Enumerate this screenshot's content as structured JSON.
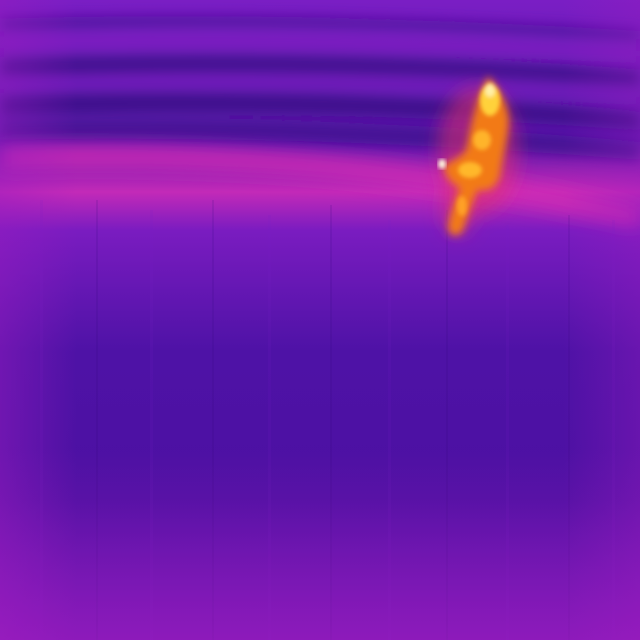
{
  "image": {
    "kind": "thermal-camera-frame",
    "palette": {
      "cold_deep": "#3a0a8c",
      "cold": "#4f12a8",
      "mid_violet": "#6a1ab8",
      "magenta": "#b01ec0",
      "hot_pink": "#d62aa8",
      "warm_orange": "#f07a10",
      "hot_yellow": "#ffd23a",
      "white_hot": "#fff8e0"
    },
    "subject": "warm-body-heat-signature",
    "background": "horizontal-cool-stripes-over-violet-field"
  }
}
